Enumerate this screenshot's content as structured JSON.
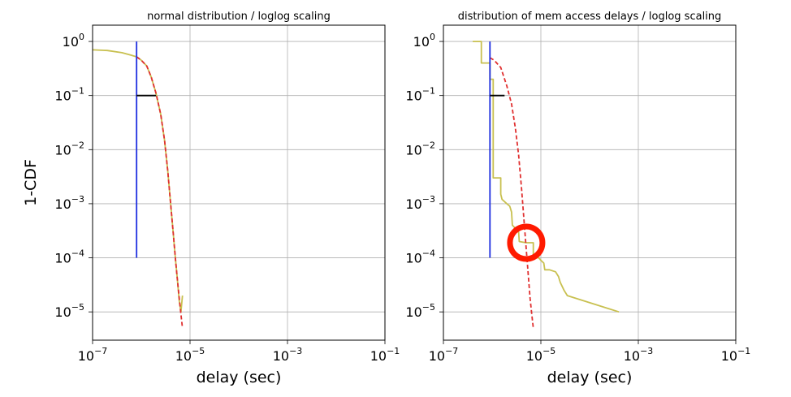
{
  "chart_data": [
    {
      "type": "line",
      "title": "normal distribution / loglog scaling",
      "xlabel": "delay (sec)",
      "ylabel": "1-CDF",
      "xscale": "log",
      "yscale": "log",
      "xlim": [
        1e-07,
        0.1
      ],
      "ylim": [
        3e-06,
        2
      ],
      "xticks": [
        {
          "value": 1e-07,
          "base": "10",
          "exp": "−7"
        },
        {
          "value": 1e-05,
          "base": "10",
          "exp": "−5"
        },
        {
          "value": 0.001,
          "base": "10",
          "exp": "−3"
        },
        {
          "value": 0.1,
          "base": "10",
          "exp": "−1"
        }
      ],
      "yticks": [
        {
          "value": 1,
          "base": "10",
          "exp": "0"
        },
        {
          "value": 0.1,
          "base": "10",
          "exp": "−1"
        },
        {
          "value": 0.01,
          "base": "10",
          "exp": "−2"
        },
        {
          "value": 0.001,
          "base": "10",
          "exp": "−3"
        },
        {
          "value": 0.0001,
          "base": "10",
          "exp": "−4"
        },
        {
          "value": 1e-05,
          "base": "10",
          "exp": "−5"
        }
      ],
      "grid": true,
      "series": [
        {
          "color": "#c8c050",
          "style": "solid",
          "points": [
            [
              1e-07,
              0.7
            ],
            [
              2e-07,
              0.68
            ],
            [
              4e-07,
              0.62
            ],
            [
              6e-07,
              0.56
            ],
            [
              8e-07,
              0.52
            ],
            [
              1e-06,
              0.45
            ],
            [
              1.3e-06,
              0.35
            ],
            [
              1.6e-06,
              0.22
            ],
            [
              2e-06,
              0.11
            ],
            [
              2.5e-06,
              0.045
            ],
            [
              3e-06,
              0.015
            ],
            [
              3.5e-06,
              0.004
            ],
            [
              4e-06,
              0.001
            ],
            [
              4.5e-06,
              0.0003
            ],
            [
              5e-06,
              0.0001
            ],
            [
              5.5e-06,
              4e-05
            ],
            [
              6e-06,
              1.6e-05
            ],
            [
              6.5e-06,
              1e-05
            ],
            [
              7e-06,
              2e-05
            ]
          ]
        },
        {
          "color": "#e03030",
          "style": "dashed",
          "points": [
            [
              8e-07,
              0.52
            ],
            [
              1e-06,
              0.45
            ],
            [
              1.3e-06,
              0.35
            ],
            [
              1.6e-06,
              0.22
            ],
            [
              2e-06,
              0.11
            ],
            [
              2.5e-06,
              0.045
            ],
            [
              3e-06,
              0.015
            ],
            [
              3.5e-06,
              0.004
            ],
            [
              4e-06,
              0.001
            ],
            [
              4.5e-06,
              0.0003
            ],
            [
              5e-06,
              0.0001
            ],
            [
              5.5e-06,
              4e-05
            ],
            [
              6e-06,
              1.8e-05
            ],
            [
              6.5e-06,
              9e-06
            ],
            [
              7e-06,
              5e-06
            ]
          ]
        },
        {
          "color": "#2030e0",
          "style": "solid",
          "points": [
            [
              8e-07,
              1
            ],
            [
              8e-07,
              0.0001
            ]
          ]
        },
        {
          "color": "#000000",
          "style": "solid",
          "points": [
            [
              8e-07,
              0.1
            ],
            [
              2e-06,
              0.1
            ]
          ]
        }
      ]
    },
    {
      "type": "line",
      "title": "distribution of mem access delays / loglog scaling",
      "xlabel": "delay (sec)",
      "ylabel": "",
      "xscale": "log",
      "yscale": "log",
      "xlim": [
        1e-07,
        0.1
      ],
      "ylim": [
        3e-06,
        2
      ],
      "xticks": [
        {
          "value": 1e-07,
          "base": "10",
          "exp": "−7"
        },
        {
          "value": 1e-05,
          "base": "10",
          "exp": "−5"
        },
        {
          "value": 0.001,
          "base": "10",
          "exp": "−3"
        },
        {
          "value": 0.1,
          "base": "10",
          "exp": "−1"
        }
      ],
      "yticks": [
        {
          "value": 1,
          "base": "10",
          "exp": "0"
        },
        {
          "value": 0.1,
          "base": "10",
          "exp": "−1"
        },
        {
          "value": 0.01,
          "base": "10",
          "exp": "−2"
        },
        {
          "value": 0.001,
          "base": "10",
          "exp": "−3"
        },
        {
          "value": 0.0001,
          "base": "10",
          "exp": "−4"
        },
        {
          "value": 1e-05,
          "base": "10",
          "exp": "−5"
        }
      ],
      "grid": true,
      "series": [
        {
          "color": "#c8c050",
          "style": "solid",
          "points": [
            [
              4e-07,
              1
            ],
            [
              6e-07,
              1
            ],
            [
              6e-07,
              0.4
            ],
            [
              9e-07,
              0.4
            ],
            [
              9e-07,
              0.2
            ],
            [
              1.05e-06,
              0.2
            ],
            [
              1.05e-06,
              0.003
            ],
            [
              1.5e-06,
              0.003
            ],
            [
              1.5e-06,
              0.0015
            ],
            [
              1.6e-06,
              0.0012
            ],
            [
              2e-06,
              0.001
            ],
            [
              2.3e-06,
              0.0009
            ],
            [
              2.5e-06,
              0.0007
            ],
            [
              2.6e-06,
              0.0004
            ],
            [
              3e-06,
              0.00035
            ],
            [
              3.5e-06,
              0.0003
            ],
            [
              3.6e-06,
              0.0002
            ],
            [
              5e-06,
              0.00019
            ],
            [
              7e-06,
              0.00019
            ],
            [
              7e-06,
              0.0001
            ],
            [
              9e-06,
              0.0001
            ],
            [
              1e-05,
              9e-05
            ],
            [
              1.15e-05,
              8e-05
            ],
            [
              1.2e-05,
              6e-05
            ],
            [
              1.5e-05,
              6e-05
            ],
            [
              2e-05,
              5.5e-05
            ],
            [
              2.3e-05,
              4.5e-05
            ],
            [
              2.5e-05,
              3.5e-05
            ],
            [
              3e-05,
              2.5e-05
            ],
            [
              3.5e-05,
              2e-05
            ],
            [
              0.0004,
              1e-05
            ]
          ]
        },
        {
          "color": "#e03030",
          "style": "dashed",
          "points": [
            [
              9e-07,
              0.5
            ],
            [
              1.1e-06,
              0.45
            ],
            [
              1.5e-06,
              0.33
            ],
            [
              2e-06,
              0.15
            ],
            [
              2.5e-06,
              0.07
            ],
            [
              3e-06,
              0.025
            ],
            [
              3.5e-06,
              0.008
            ],
            [
              4e-06,
              0.002
            ],
            [
              4.5e-06,
              0.0005
            ],
            [
              5e-06,
              0.00015
            ],
            [
              5.5e-06,
              5e-05
            ],
            [
              6e-06,
              1.8e-05
            ],
            [
              6.5e-06,
              9e-06
            ],
            [
              7e-06,
              5e-06
            ]
          ]
        },
        {
          "color": "#2030e0",
          "style": "solid",
          "points": [
            [
              9e-07,
              1
            ],
            [
              9e-07,
              0.0001
            ]
          ]
        },
        {
          "color": "#000000",
          "style": "solid",
          "points": [
            [
              9e-07,
              0.1
            ],
            [
              1.8e-06,
              0.1
            ]
          ]
        }
      ],
      "annotations": [
        {
          "shape": "circle",
          "color": "#ff1a00",
          "x": 5e-06,
          "y": 0.00019
        }
      ]
    }
  ]
}
